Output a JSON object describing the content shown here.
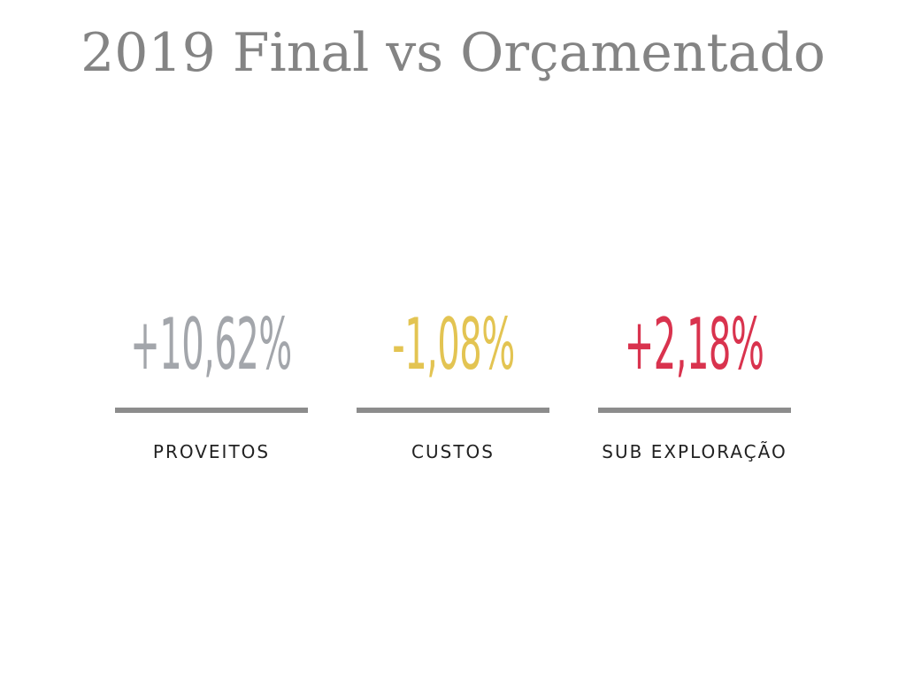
{
  "title": "2019 Final vs Orçamentado",
  "kpis": [
    {
      "value": "+10,62%",
      "label": "PROVEITOS",
      "color": "#a3a6ab"
    },
    {
      "value": "-1,08%",
      "label": "CUSTOS",
      "color": "#e3c452"
    },
    {
      "value": "+2,18%",
      "label": "SUB EXPLORAÇÃO",
      "color": "#d9334e"
    }
  ],
  "rule_color": "#8c8c8c"
}
